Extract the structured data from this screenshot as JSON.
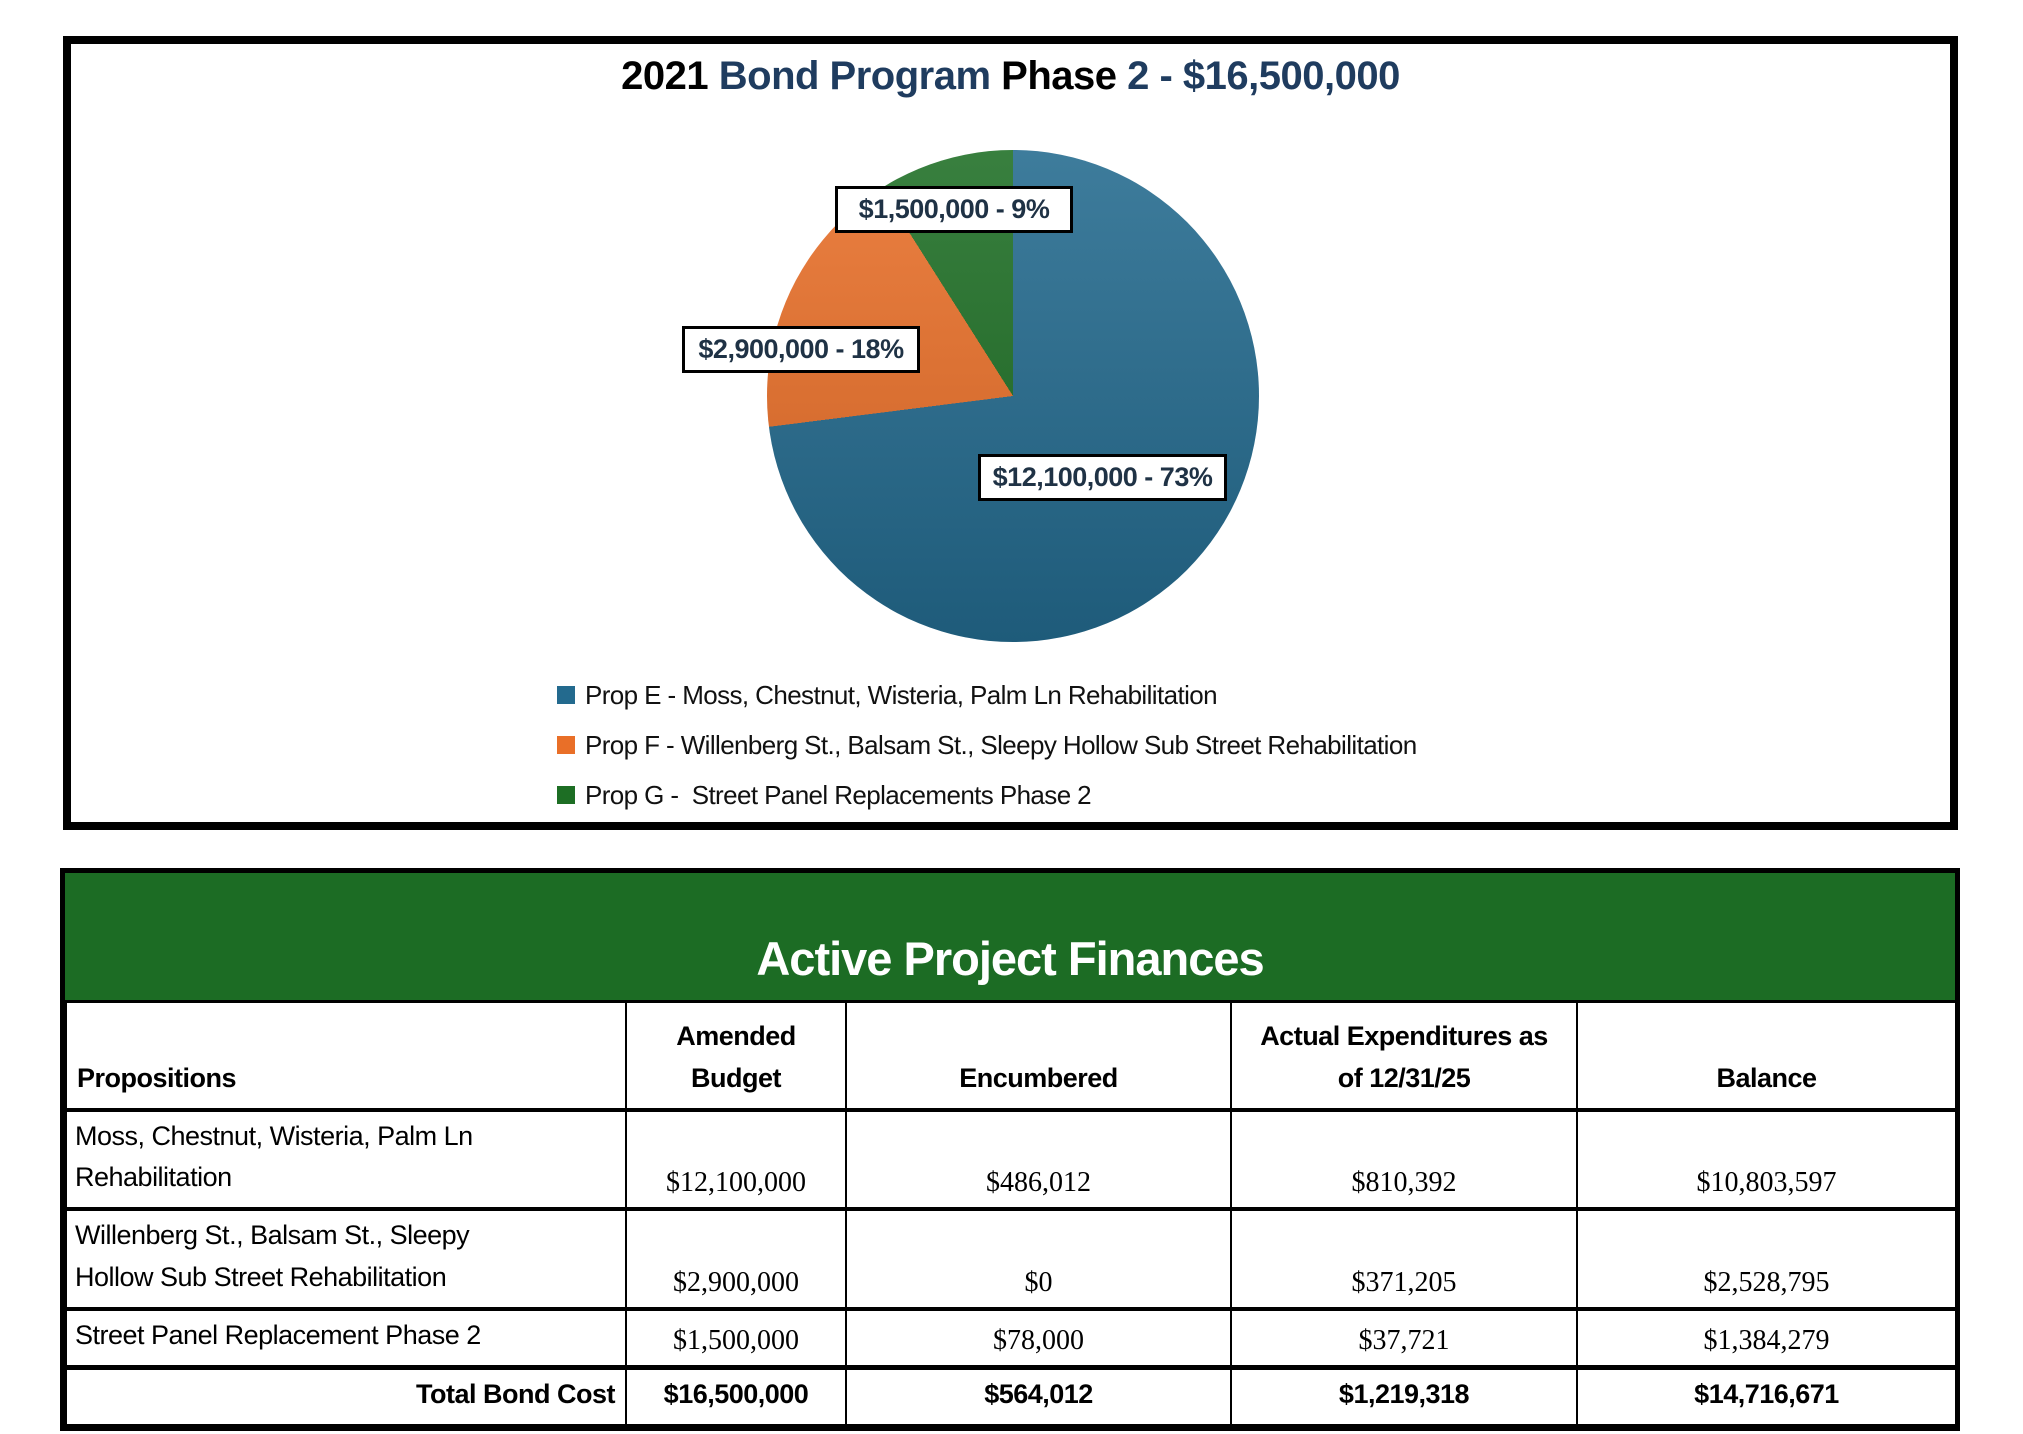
{
  "chart_data": [
    {
      "type": "pie",
      "title": "2021 Bond Program Phase 2 - $16,500,000",
      "labels": [
        "Prop E - Moss, Chestnut, Wisteria, Palm Ln Rehabilitation",
        "Prop F - Willenberg St., Balsam St., Sleepy Hollow Sub Street Rehabilitation",
        "Prop G -  Street Panel Replacements Phase 2"
      ],
      "values": [
        12100000,
        2900000,
        1500000
      ],
      "percents": [
        73,
        18,
        9
      ],
      "value_labels": [
        "$12,100,000 - 73%",
        "$2,900,000 - 18%",
        "$1,500,000 - 9%"
      ],
      "colors": [
        "#236a8e",
        "#e96f28",
        "#1d6e24"
      ],
      "start_angle_deg": 0,
      "direction": "clockwise",
      "legend_position": "bottom-left"
    },
    {
      "type": "table",
      "title": "Active Project Finances",
      "columns": [
        "Propositions",
        "Amended Budget",
        "Encumbered",
        "Actual Expenditures as of 12/31/25",
        "Balance"
      ],
      "rows": [
        [
          "Moss, Chestnut, Wisteria, Palm Ln Rehabilitation",
          "$12,100,000",
          "$486,012",
          "$810,392",
          "$10,803,597"
        ],
        [
          "Willenberg St., Balsam St., Sleepy Hollow Sub Street Rehabilitation",
          "$2,900,000",
          "$0",
          "$371,205",
          "$2,528,795"
        ],
        [
          "Street Panel Replacement Phase 2",
          "$1,500,000",
          "$78,000",
          "$37,721",
          "$1,384,279"
        ]
      ],
      "total_row": [
        "Total Bond Cost",
        "$16,500,000",
        "$564,012",
        "$1,219,318",
        "$14,716,671"
      ]
    }
  ],
  "chart": {
    "title_segments": [
      {
        "text": "2021 ",
        "color": "#000000"
      },
      {
        "text": "Bond Program ",
        "color": "#1f3c5f"
      },
      {
        "text": "Phase ",
        "color": "#000000"
      },
      {
        "text": "2 - $16,500,000",
        "color": "#1f3c5f"
      }
    ]
  },
  "table": {
    "banner_title": "Active Project Finances",
    "headers": [
      "Propositions",
      "Amended\nBudget",
      "Encumbered",
      "Actual Expenditures as\nof 12/31/25",
      "Balance"
    ],
    "rows": [
      {
        "name": "Moss, Chestnut, Wisteria, Palm Ln\nRehabilitation",
        "amended": "$12,100,000",
        "encumbered": "$486,012",
        "actual": "$810,392",
        "balance": "$10,803,597"
      },
      {
        "name": "Willenberg St., Balsam St., Sleepy\nHollow Sub Street Rehabilitation",
        "amended": "$2,900,000",
        "encumbered": "$0",
        "actual": "$371,205",
        "balance": "$2,528,795"
      },
      {
        "name": "Street Panel Replacement Phase 2",
        "amended": "$1,500,000",
        "encumbered": "$78,000",
        "actual": "$37,721",
        "balance": "$1,384,279"
      }
    ],
    "total": {
      "label": "Total Bond Cost",
      "amended": "$16,500,000",
      "encumbered": "$564,012",
      "actual": "$1,219,318",
      "balance": "$14,716,671"
    }
  }
}
